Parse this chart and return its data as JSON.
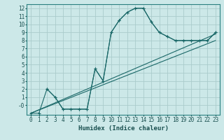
{
  "xlabel": "Humidex (Indice chaleur)",
  "bg_color": "#cce8e8",
  "grid_color": "#aacccc",
  "line_color": "#1a6868",
  "xlim": [
    -0.5,
    23.5
  ],
  "ylim": [
    -1.2,
    12.5
  ],
  "xticks": [
    0,
    1,
    2,
    3,
    4,
    5,
    6,
    7,
    8,
    9,
    10,
    11,
    12,
    13,
    14,
    15,
    16,
    17,
    18,
    19,
    20,
    21,
    22,
    23
  ],
  "yticks": [
    0,
    1,
    2,
    3,
    4,
    5,
    6,
    7,
    8,
    9,
    10,
    11,
    12
  ],
  "ytick_labels": [
    "-0",
    "1",
    "2",
    "3",
    "4",
    "5",
    "6",
    "7",
    "8",
    "9",
    "10",
    "11",
    "12"
  ],
  "series1_x": [
    0,
    1,
    2,
    3,
    4,
    5,
    6,
    7,
    8,
    9,
    10,
    11,
    12,
    13,
    14,
    15,
    16,
    17,
    18,
    19,
    20,
    21,
    22,
    23
  ],
  "series1_y": [
    -1,
    -1,
    2,
    1,
    -0.5,
    -0.5,
    -0.5,
    -0.5,
    4.5,
    3.0,
    9.0,
    10.5,
    11.5,
    12.0,
    12.0,
    10.3,
    9.0,
    8.5,
    8.0,
    8.0,
    8.0,
    8.0,
    8.0,
    9.0
  ],
  "series2_x": [
    2,
    3,
    4,
    5,
    6,
    7,
    8,
    9,
    10,
    11,
    12,
    13,
    14,
    15,
    16,
    17,
    18,
    19,
    20,
    21,
    22,
    23
  ],
  "series2_y": [
    2,
    1,
    -0.5,
    -0.5,
    -0.5,
    -0.5,
    4.5,
    3.0,
    9.0,
    10.5,
    11.5,
    12.0,
    12.0,
    10.3,
    9.0,
    8.5,
    8.0,
    8.0,
    8.0,
    8.0,
    8.0,
    9.0
  ],
  "line3_x": [
    0,
    23
  ],
  "line3_y": [
    -1.0,
    8.8
  ],
  "line4_x": [
    0,
    23
  ],
  "line4_y": [
    -1.0,
    8.0
  ]
}
